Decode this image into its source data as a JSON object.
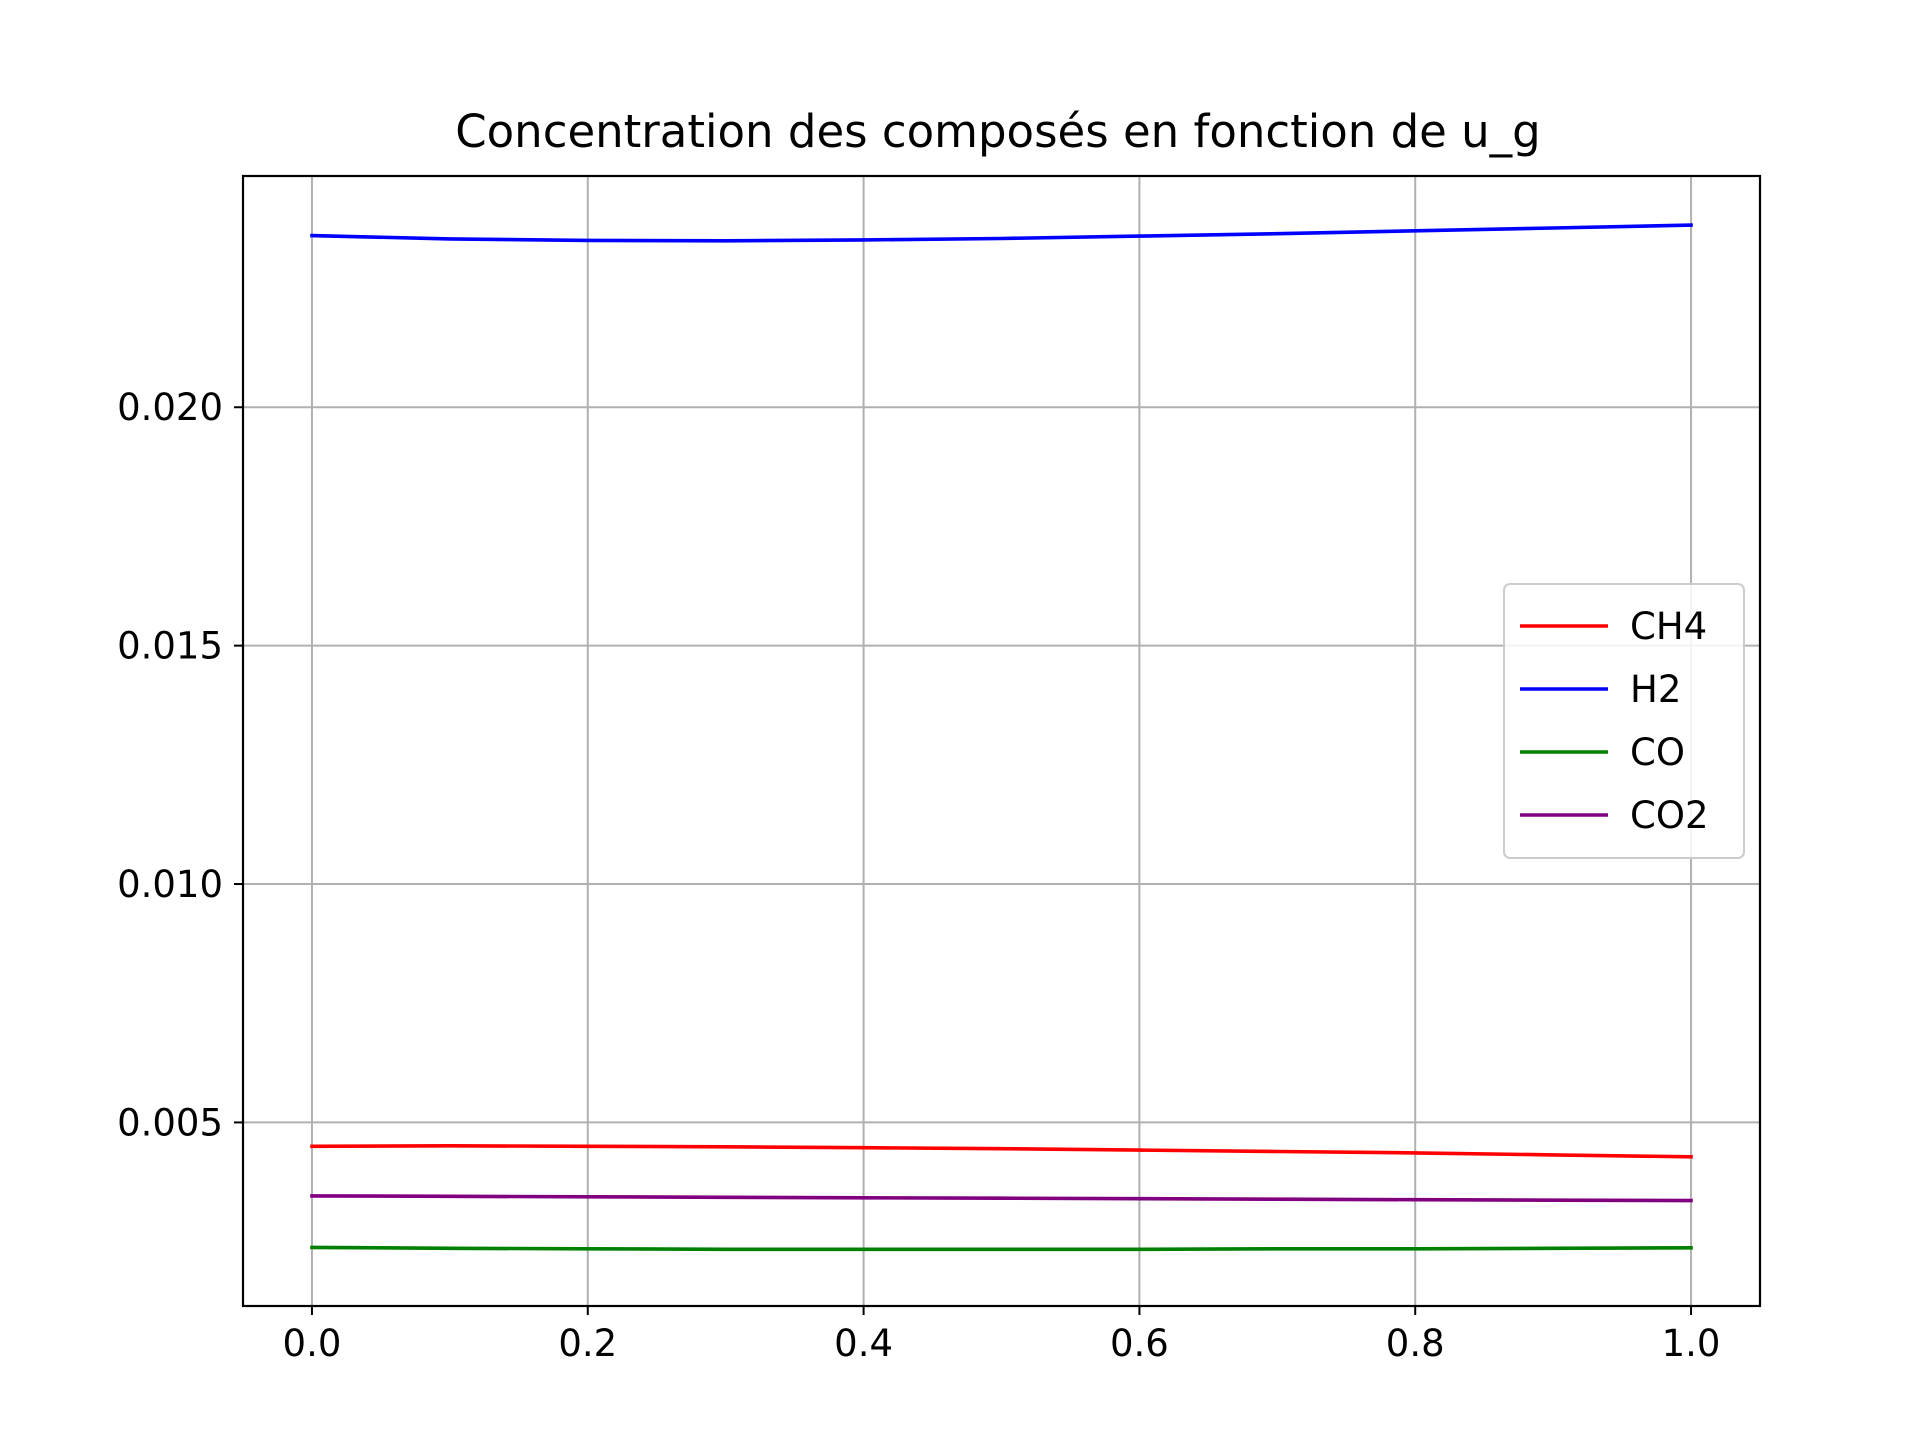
{
  "chart_data": {
    "type": "line",
    "title": "Concentration des composés en fonction de u_g",
    "xlabel": "",
    "ylabel": "",
    "xlim": [
      -0.05,
      1.05
    ],
    "ylim": [
      0.00115,
      0.02485
    ],
    "grid": true,
    "legend_position": "center-right",
    "x_ticks": [
      {
        "value": 0.0,
        "label": "0.0"
      },
      {
        "value": 0.2,
        "label": "0.2"
      },
      {
        "value": 0.4,
        "label": "0.4"
      },
      {
        "value": 0.6,
        "label": "0.6"
      },
      {
        "value": 0.8,
        "label": "0.8"
      },
      {
        "value": 1.0,
        "label": "1.0"
      }
    ],
    "y_ticks": [
      {
        "value": 0.005,
        "label": "0.005"
      },
      {
        "value": 0.01,
        "label": "0.010"
      },
      {
        "value": 0.015,
        "label": "0.015"
      },
      {
        "value": 0.02,
        "label": "0.020"
      }
    ],
    "x": [
      0.0,
      0.1,
      0.2,
      0.3,
      0.4,
      0.5,
      0.6,
      0.7,
      0.8,
      0.9,
      1.0
    ],
    "series": [
      {
        "name": "CH4",
        "color": "#ff0000",
        "values": [
          0.0045,
          0.00451,
          0.0045,
          0.00449,
          0.00447,
          0.00445,
          0.00442,
          0.00439,
          0.00436,
          0.00432,
          0.00428
        ]
      },
      {
        "name": "H2",
        "color": "#0000ff",
        "values": [
          0.0236,
          0.02353,
          0.0235,
          0.02349,
          0.02351,
          0.02354,
          0.02359,
          0.02364,
          0.0237,
          0.02376,
          0.02382
        ]
      },
      {
        "name": "CO",
        "color": "#008000",
        "values": [
          0.00238,
          0.00236,
          0.00235,
          0.00234,
          0.00234,
          0.00234,
          0.00234,
          0.00235,
          0.00235,
          0.00236,
          0.00237
        ]
      },
      {
        "name": "CO2",
        "color": "#800080",
        "values": [
          0.00346,
          0.00345,
          0.00344,
          0.00343,
          0.00342,
          0.00341,
          0.0034,
          0.00339,
          0.00338,
          0.00337,
          0.00336
        ]
      }
    ]
  }
}
